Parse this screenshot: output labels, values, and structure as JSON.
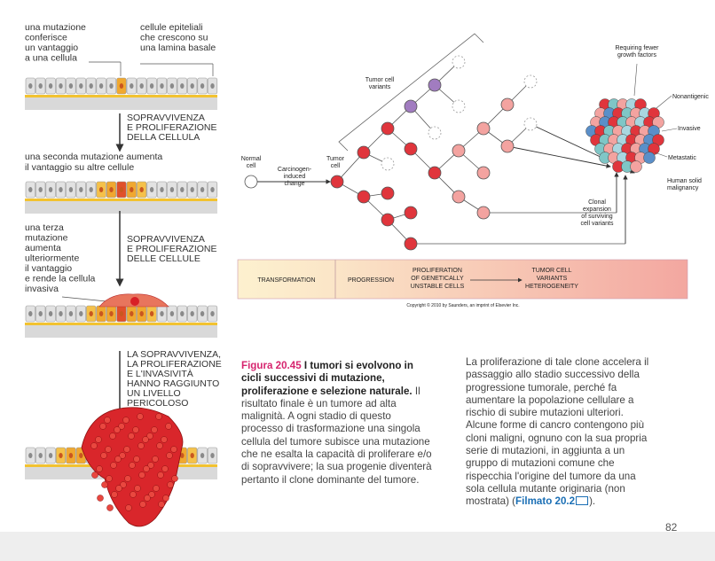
{
  "left_panel": {
    "label_first_mutation": [
      "una mutazione",
      "conferisce",
      "un vantaggio",
      "a una cellula"
    ],
    "label_epithelial": [
      "cellule epiteliali",
      "che crescono su",
      "una lamina basale"
    ],
    "step_1": [
      "SOPRAVVIVENZA",
      "E PROLIFERAZIONE",
      "DELLA CELLULA"
    ],
    "label_second_mutation": [
      "una seconda mutazione aumenta",
      "il vantaggio su altre cellule"
    ],
    "label_third_mutation": [
      "una terza",
      "mutazione",
      "aumenta",
      "ulteriormente",
      "il vantaggio",
      "e rende la cellula",
      "invasiva"
    ],
    "step_2": [
      "SOPRAVVIVENZA",
      "E PROLIFERAZIONE",
      "DELLE CELLULE"
    ],
    "step_3": [
      "LA SOPRAVVIVENZA,",
      "LA PROLIFERAZIONE",
      "E L'INVASIVITÀ",
      "HANNO RAGGIUNTO",
      "UN LIVELLO",
      "PERICOLOSO"
    ]
  },
  "diagram": {
    "tumor_cell_variants": [
      "Tumor cell",
      "variants"
    ],
    "normal_cell": [
      "Normal",
      "cell"
    ],
    "carcinogen": [
      "Carcinogen-",
      "induced",
      "change"
    ],
    "tumor_cell": [
      "Tumor",
      "cell"
    ],
    "growth_factors": [
      "Requiring fewer",
      "growth factors"
    ],
    "nonantigenic": [
      "Nonantigenic"
    ],
    "invasive": [
      "Invasive"
    ],
    "metastatic": [
      "Metastatic"
    ],
    "human_malignancy": [
      "Human solid",
      "malignancy"
    ],
    "clonal_expansion": [
      "Clonal",
      "expansion",
      "of surviving",
      "cell variants"
    ],
    "stage_transformation": [
      "TRANSFORMATION"
    ],
    "stage_progression": [
      "PROGRESSION"
    ],
    "stage_proliferation": [
      "PROLIFERATION",
      "OF GENETICALLY",
      "UNSTABLE CELLS"
    ],
    "stage_heterogeneity": [
      "TUMOR CELL",
      "VARIANTS",
      "HETEROGENEITY"
    ],
    "copyright": "Copyright © 2010 by Saunders, an imprint of Elsevier Inc."
  },
  "caption": {
    "figure_number": "Figura 20.45",
    "title": "I tumori si evolvono in cicli successivi di mutazione, proliferazione e selezione naturale.",
    "body": "Il risultato finale è un tumore ad alta malignità. A ogni stadio di questo processo di trasformazione una singola cellula del tumore subisce una mutazione che ne esalta la capacità di proliferare e/o di sopravvivere; la sua progenie diventerà pertanto il clone dominante del tumore."
  },
  "body_text": {
    "text": "La proliferazione di tale clone accelera il passaggio allo stadio successivo della progressione tumorale, perché fa aumentare la popolazione cellulare a rischio di subire mutazioni ulteriori. Alcune forme di cancro contengono più cloni maligni, ognuno con la sua propria serie di mutazioni, in aggiunta a un gruppo di mutazioni comune che rispecchia l'origine del tumore da una sola cellula mutante originaria (non mostrata) (",
    "link": "Filmato 20.2",
    "closing": ")."
  },
  "page_number": "82"
}
